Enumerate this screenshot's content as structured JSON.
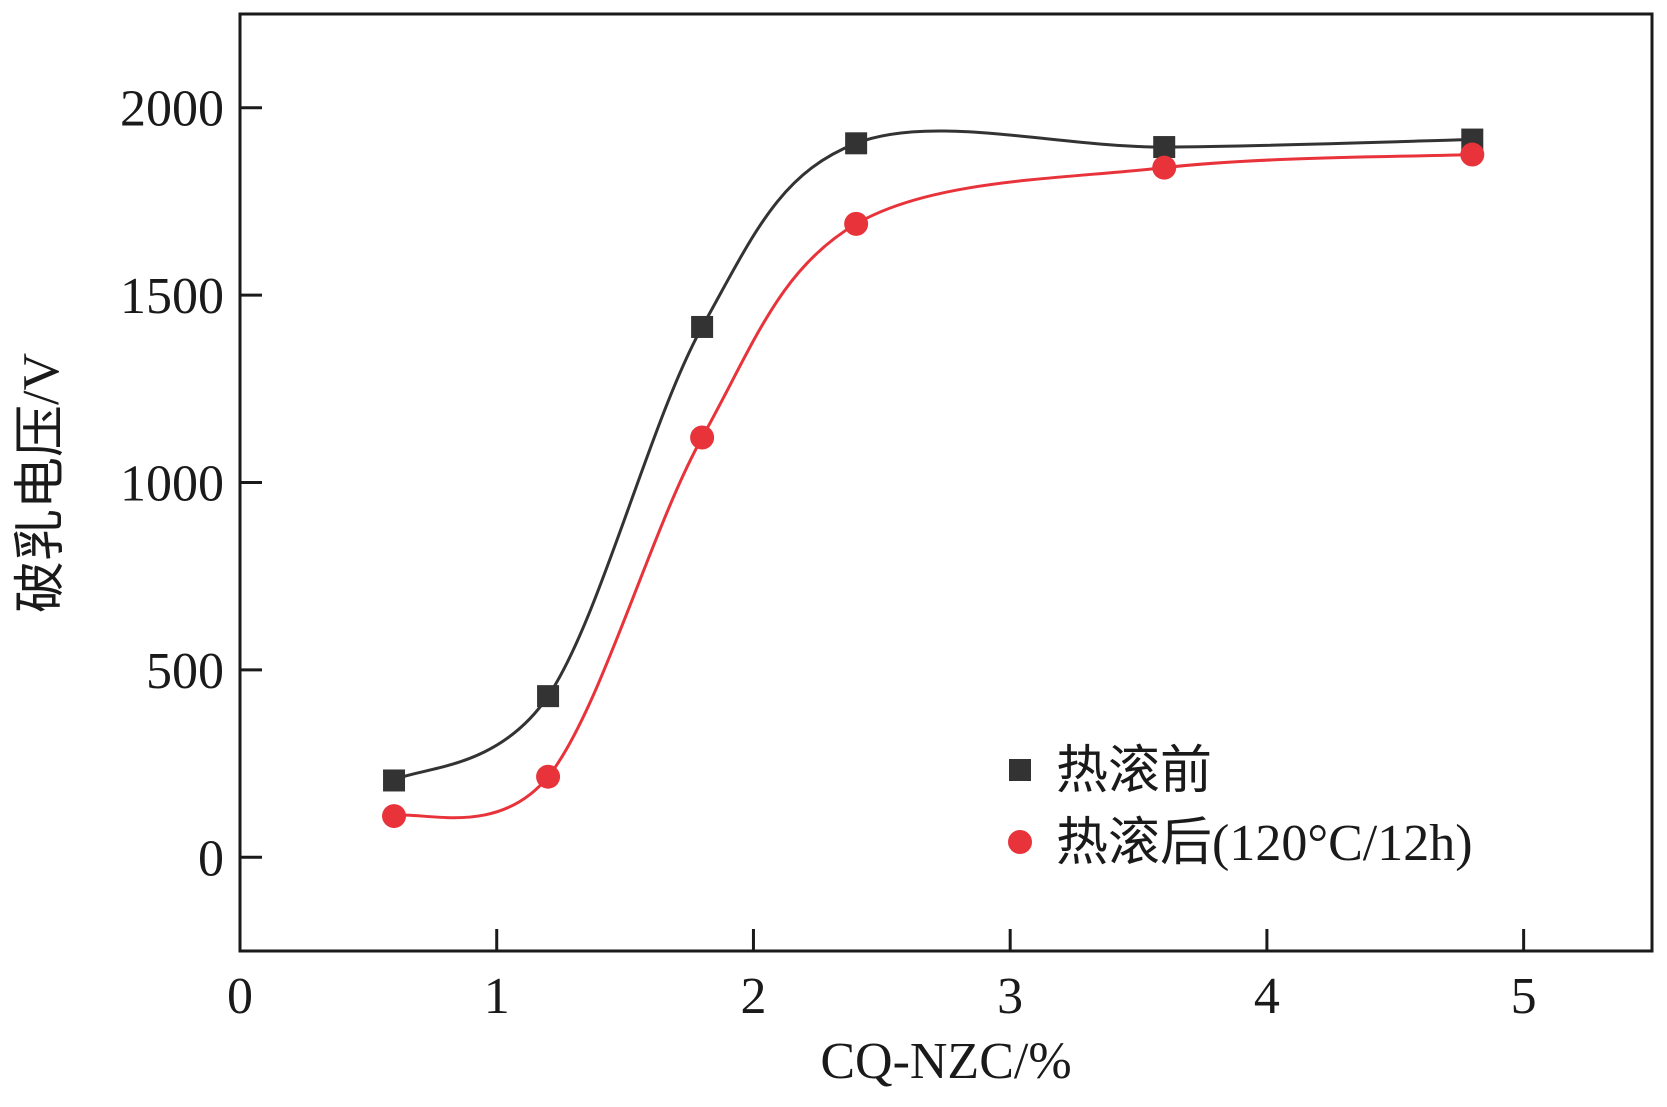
{
  "chart_data": {
    "type": "line",
    "title": "",
    "xlabel": "CQ-NZC/%",
    "ylabel": "破乳电压/V",
    "xlim": [
      0,
      5.5
    ],
    "ylim": [
      -250,
      2250
    ],
    "x_ticks": [
      0,
      1,
      2,
      3,
      4,
      5
    ],
    "y_ticks": [
      0,
      500,
      1000,
      1500,
      2000
    ],
    "grid": false,
    "legend_position": "bottom-right",
    "series": [
      {
        "name": "热滚前",
        "color": "#333333",
        "marker": "square",
        "x": [
          0.6,
          1.2,
          1.8,
          2.4,
          3.6,
          4.8
        ],
        "y": [
          205,
          430,
          1415,
          1905,
          1895,
          1915
        ]
      },
      {
        "name": "热滚后(120°C/12h)",
        "color": "#e8333b",
        "marker": "circle",
        "x": [
          0.6,
          1.2,
          1.8,
          2.4,
          3.6,
          4.8
        ],
        "y": [
          110,
          215,
          1120,
          1690,
          1840,
          1875
        ]
      }
    ]
  }
}
